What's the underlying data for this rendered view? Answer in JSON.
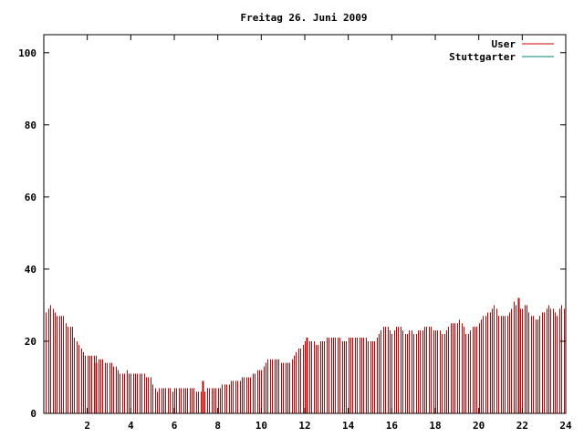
{
  "chart_data": {
    "type": "bar",
    "title": "Freitag 26. Juni 2009",
    "xlim": [
      0,
      24
    ],
    "ylim": [
      0,
      105
    ],
    "xticks": [
      2,
      4,
      6,
      8,
      10,
      12,
      14,
      16,
      18,
      20,
      22,
      24
    ],
    "yticks": [
      0,
      20,
      40,
      60,
      80,
      100
    ],
    "xtick_labels": [
      "2",
      "4",
      "6",
      "8",
      "10",
      "12",
      "14",
      "16",
      "18",
      "20",
      "22",
      "24"
    ],
    "ytick_labels": [
      "0",
      "20",
      "40",
      "60",
      "80",
      "100"
    ],
    "legend_position": "top-right",
    "grid": false,
    "series": [
      {
        "name": "User",
        "color": "#cc0000",
        "x_start": 0.1,
        "x_step": 0.1,
        "values": [
          28,
          29,
          30,
          29,
          28,
          27,
          27,
          27,
          27,
          25,
          24,
          24,
          24,
          21,
          20,
          19,
          18,
          17,
          16,
          16,
          16,
          16,
          16,
          16,
          15,
          15,
          15,
          14,
          14,
          14,
          14,
          13,
          13,
          12,
          11,
          11,
          11,
          12,
          11,
          11,
          11,
          11,
          11,
          11,
          11,
          11,
          10,
          10,
          10,
          8,
          7,
          6,
          7,
          7,
          7,
          7,
          7,
          7,
          6,
          7,
          7,
          7,
          7,
          7,
          7,
          7,
          7,
          7,
          7,
          6,
          6,
          6,
          6,
          6,
          7,
          7,
          7,
          7,
          7,
          7,
          7,
          8,
          8,
          8,
          8,
          9,
          9,
          9,
          9,
          9,
          10,
          10,
          10,
          10,
          10,
          11,
          11,
          12,
          12,
          12,
          13,
          14,
          15,
          15,
          15,
          15,
          15,
          15,
          14,
          14,
          14,
          14,
          14,
          15,
          16,
          17,
          18,
          18,
          19,
          20,
          20,
          20,
          20,
          20,
          19,
          19,
          20,
          20,
          20,
          21,
          21,
          21,
          21,
          21,
          21,
          21,
          20,
          20,
          20,
          21,
          21,
          21,
          21,
          21,
          21,
          21,
          21,
          21,
          20,
          20,
          20,
          20,
          21,
          22,
          23,
          24,
          24,
          24,
          23,
          22,
          23,
          24,
          24,
          24,
          23,
          22,
          22,
          23,
          23,
          22,
          22,
          23,
          23,
          23,
          24,
          24,
          24,
          24,
          23,
          23,
          23,
          23,
          22,
          22,
          23,
          24,
          25,
          25,
          25,
          25,
          26,
          25,
          24,
          22,
          22,
          23,
          24,
          24,
          24,
          25,
          26,
          27,
          27,
          28,
          28,
          29,
          30,
          29,
          27,
          27,
          27,
          27,
          27,
          28,
          29,
          31,
          30,
          29,
          29,
          29,
          30,
          30,
          28,
          27,
          27,
          26,
          26,
          27,
          28,
          28,
          29,
          30,
          29,
          29,
          28,
          27,
          29,
          30,
          29,
          28,
          27,
          27,
          28,
          29,
          29,
          30,
          29,
          29,
          28,
          30,
          31,
          32,
          31,
          31,
          31,
          31,
          32,
          33,
          33,
          33,
          32,
          31,
          32,
          33,
          33,
          32,
          32,
          31,
          31,
          32,
          33,
          33,
          34,
          34,
          33,
          32,
          31,
          31,
          30,
          30,
          30,
          31,
          31,
          30,
          30,
          30,
          31,
          31,
          32,
          32,
          33,
          32,
          32,
          31
        ],
        "spikes": [
          {
            "x": 2.4,
            "value": 14
          },
          {
            "x": 7.3,
            "value": 9
          },
          {
            "x": 12.1,
            "value": 21
          },
          {
            "x": 21.8,
            "value": 32
          }
        ]
      },
      {
        "name": "Stuttgarter",
        "color": "#008080",
        "values": []
      }
    ]
  }
}
